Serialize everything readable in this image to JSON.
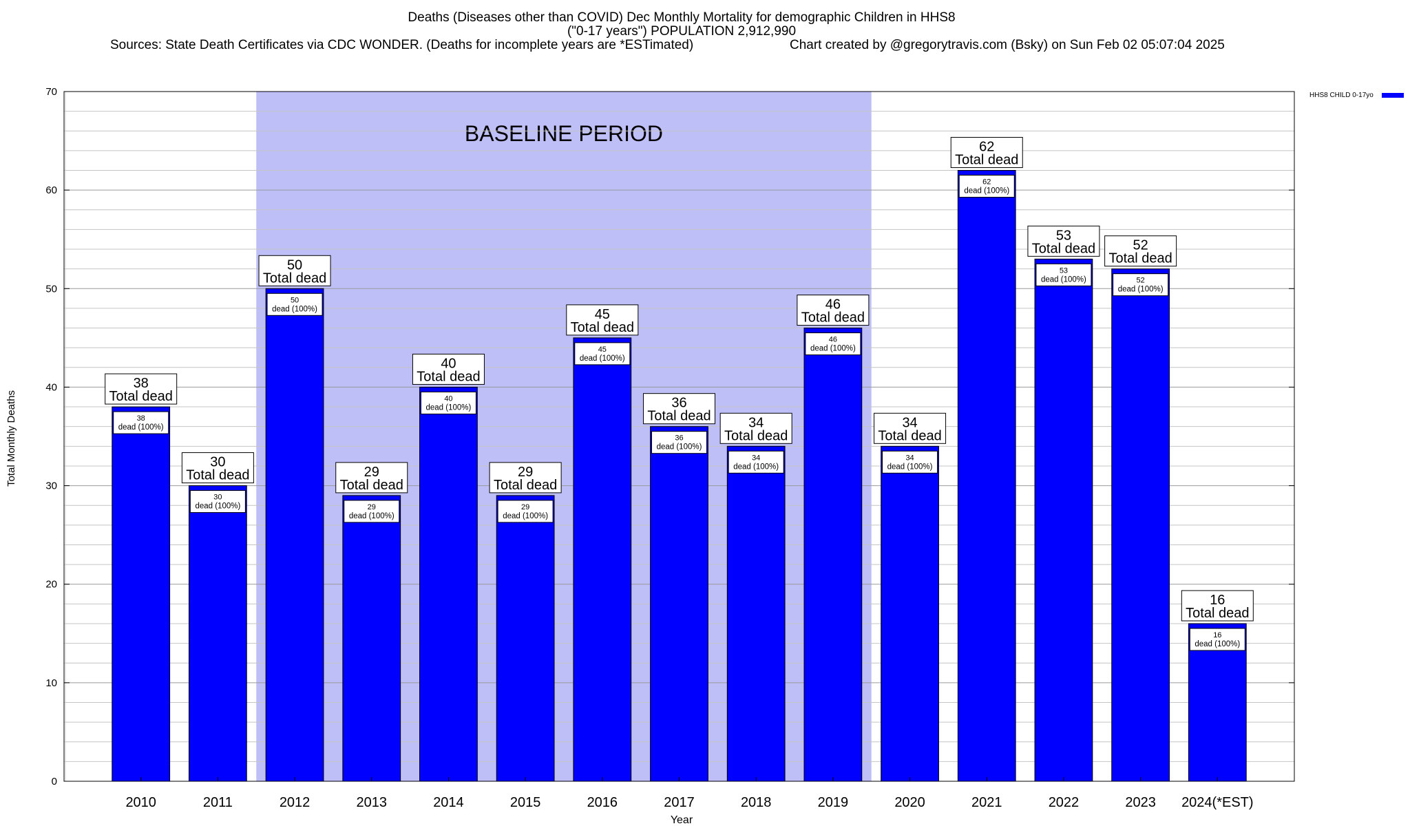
{
  "header": {
    "title_line1": "Deaths (Diseases other than COVID) Dec Monthly Mortality for demographic Children in HHS8",
    "title_line2": "(\"0-17 years\") POPULATION 2,912,990",
    "sources": "Sources: State Death Certificates via CDC WONDER. (Deaths for incomplete years are *ESTimated)",
    "credit": "Chart created by @gregorytravis.com (Bsky) on Sun Feb 02 05:07:04 2025"
  },
  "chart_data": {
    "type": "bar",
    "xlabel": "Year",
    "ylabel": "Total Monthly Deaths",
    "ylim": [
      0,
      70
    ],
    "y_ticks": [
      0,
      10,
      20,
      30,
      40,
      50,
      60,
      70
    ],
    "y_minor_step": 2,
    "grid": true,
    "categories": [
      "2010",
      "2011",
      "2012",
      "2013",
      "2014",
      "2015",
      "2016",
      "2017",
      "2018",
      "2019",
      "2020",
      "2021",
      "2022",
      "2023",
      "2024(*EST)"
    ],
    "series": [
      {
        "name": "HHS8 CHILD 0-17yo",
        "color": "#0000ff",
        "values": [
          38,
          30,
          50,
          29,
          40,
          29,
          45,
          36,
          34,
          46,
          34,
          62,
          53,
          52,
          16
        ]
      }
    ],
    "top_label_suffix": "Total dead",
    "inner_label_suffix": "dead (100%)",
    "baseline": {
      "label": "BASELINE PERIOD",
      "start_category": "2012",
      "end_category": "2019",
      "color": "#bfbff7"
    },
    "legend_position": "top-right"
  }
}
